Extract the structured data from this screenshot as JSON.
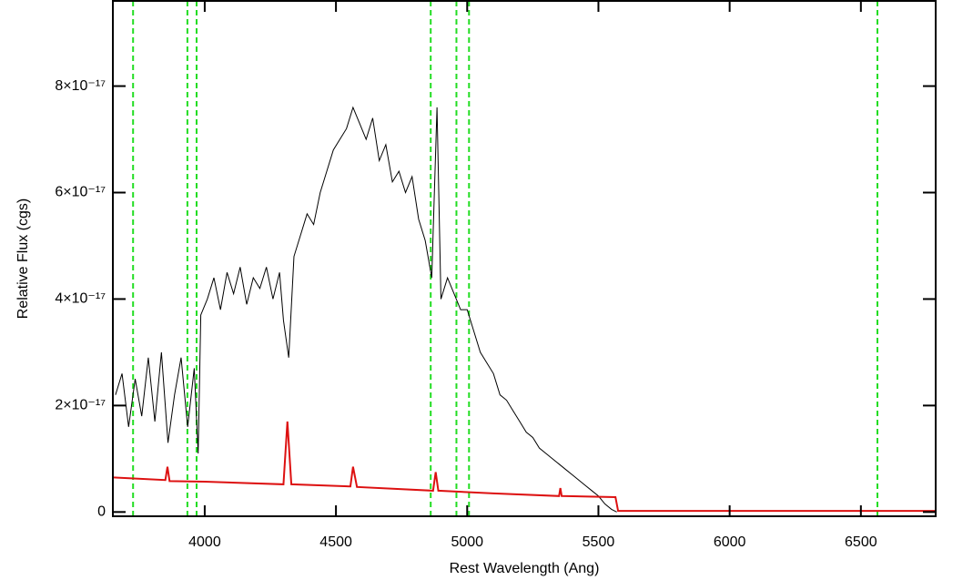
{
  "chart_data": {
    "type": "line",
    "xlabel": "Rest Wavelength (Ang)",
    "ylabel": "Relative Flux (cgs)",
    "xlim": [
      3650,
      6785
    ],
    "ylim": [
      -8e-19,
      9.6e-17
    ],
    "xticks": [
      4000,
      4500,
      5000,
      5500,
      6000,
      6500
    ],
    "yticks": [
      0,
      {
        "value": 2e-17,
        "label": "2×10⁻¹⁷"
      },
      {
        "value": 4e-17,
        "label": "4×10⁻¹⁷"
      },
      {
        "value": 6e-17,
        "label": "6×10⁻¹⁷"
      },
      {
        "value": 8e-17,
        "label": "8×10⁻¹⁷"
      }
    ],
    "reference_lines": {
      "color": "#22dd22",
      "x": [
        3727,
        3934,
        3969,
        4861,
        4959,
        5007,
        6563
      ]
    },
    "series": [
      {
        "color": "#000000",
        "x": [
          3660,
          3685,
          3710,
          3735,
          3760,
          3785,
          3810,
          3835,
          3860,
          3885,
          3910,
          3935,
          3960,
          3975,
          3985,
          4010,
          4035,
          4060,
          4085,
          4110,
          4135,
          4160,
          4185,
          4210,
          4235,
          4260,
          4285,
          4300,
          4320,
          4340,
          4365,
          4390,
          4415,
          4440,
          4465,
          4490,
          4515,
          4540,
          4565,
          4590,
          4615,
          4640,
          4665,
          4690,
          4715,
          4740,
          4765,
          4790,
          4815,
          4840,
          4865,
          4885,
          4900,
          4925,
          4950,
          4975,
          5000,
          5025,
          5050,
          5075,
          5100,
          5125,
          5150,
          5175,
          5200,
          5225,
          5250,
          5275,
          5300,
          5325,
          5350,
          5375,
          5400,
          5425,
          5450,
          5475,
          5500,
          5525,
          5550,
          5570
        ],
        "values": [
          2.2e-17,
          2.6e-17,
          1.6e-17,
          2.5e-17,
          1.8e-17,
          2.9e-17,
          1.7e-17,
          3e-17,
          1.3e-17,
          2.2e-17,
          2.9e-17,
          1.6e-17,
          2.7e-17,
          1.1e-17,
          3.7e-17,
          4e-17,
          4.4e-17,
          3.8e-17,
          4.5e-17,
          4.1e-17,
          4.6e-17,
          3.9e-17,
          4.4e-17,
          4.2e-17,
          4.6e-17,
          4e-17,
          4.5e-17,
          3.6e-17,
          2.9e-17,
          4.8e-17,
          5.2e-17,
          5.6e-17,
          5.4e-17,
          6e-17,
          6.4e-17,
          6.8e-17,
          7e-17,
          7.2e-17,
          7.6e-17,
          7.3e-17,
          7e-17,
          7.4e-17,
          6.6e-17,
          6.9e-17,
          6.2e-17,
          6.4e-17,
          6e-17,
          6.3e-17,
          5.5e-17,
          5.1e-17,
          4.4e-17,
          7.6e-17,
          4e-17,
          4.4e-17,
          4.1e-17,
          3.8e-17,
          3.8e-17,
          3.4e-17,
          3e-17,
          2.8e-17,
          2.6e-17,
          2.2e-17,
          2.1e-17,
          1.9e-17,
          1.7e-17,
          1.5e-17,
          1.4e-17,
          1.2e-17,
          1.1e-17,
          1e-17,
          9e-18,
          8e-18,
          7e-18,
          6e-18,
          5e-18,
          4e-18,
          3e-18,
          1.5e-18,
          5e-19,
          0
        ]
      },
      {
        "color": "#dd1111",
        "x": [
          3650,
          3850,
          3858,
          3866,
          4000,
          4300,
          4315,
          4330,
          4555,
          4565,
          4580,
          4870,
          4880,
          4890,
          5100,
          5350,
          5355,
          5360,
          5565,
          5575,
          6785
        ],
        "values": [
          6.5e-18,
          6e-18,
          8.5e-18,
          5.8e-18,
          5.7e-18,
          5.2e-18,
          1.7e-17,
          5.2e-18,
          4.8e-18,
          8.5e-18,
          4.7e-18,
          4e-18,
          7.5e-18,
          4e-18,
          3.5e-18,
          3e-18,
          4.5e-18,
          3e-18,
          2.8e-18,
          2e-19,
          2e-19
        ]
      }
    ]
  }
}
